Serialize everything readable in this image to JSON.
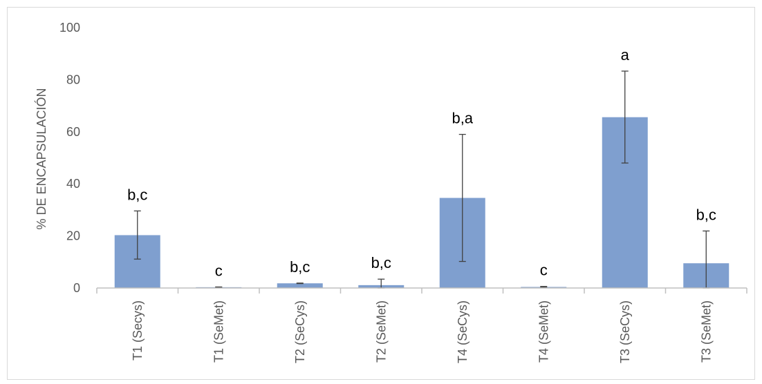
{
  "chart_data": {
    "type": "bar",
    "title": "",
    "xlabel": "",
    "ylabel": "% DE ENCAPSULACIÓN",
    "ylim": [
      0,
      100
    ],
    "yticks": [
      0,
      20,
      40,
      60,
      80,
      100
    ],
    "grid": false,
    "legend": "none",
    "bar_color": "#7f9fcf",
    "categories": [
      "T1 (Secys)",
      "T1 (SeMet)",
      "T2 (SeCys)",
      "T2 (SeMet)",
      "T4 (SeCys)",
      "T4 (SeMet)",
      "T3 (SeCys)",
      "T3 (SeMet)"
    ],
    "values": [
      20.3,
      0.3,
      1.8,
      1.1,
      34.6,
      0.4,
      65.6,
      9.5
    ],
    "error_low": [
      11.1,
      0.3,
      1.7,
      0.0,
      10.2,
      0.3,
      48.0,
      0.0
    ],
    "error_high": [
      29.6,
      0.4,
      1.9,
      3.4,
      59.0,
      0.6,
      83.3,
      21.9
    ],
    "annotations": [
      "b,c",
      "c",
      "b,c",
      "b,c",
      "b,a",
      "c",
      "a",
      "b,c"
    ]
  }
}
